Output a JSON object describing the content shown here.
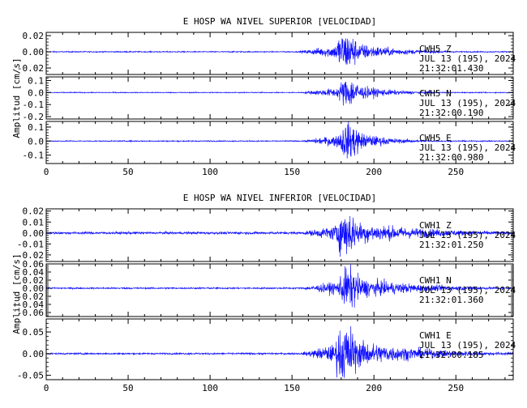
{
  "colors": {
    "trace": "#1010ff",
    "axis": "#000000",
    "background": "#ffffff"
  },
  "chart_data": [
    {
      "type": "line",
      "title": "E HOSP WA NIVEL SUPERIOR [VELOCIDAD]",
      "ylabel": "Amplitud [cm/s]",
      "xlim": [
        0,
        285
      ],
      "x_ticks": [
        0,
        50,
        100,
        150,
        200,
        250
      ],
      "panels": [
        {
          "station": "CWH5",
          "channel": "Z",
          "date": "JUL 13 (195), 2024",
          "time": "21:32:01.430",
          "ylim": [
            -0.028,
            0.024
          ],
          "y_ticks": [
            0.02,
            0.0,
            -0.02
          ],
          "y_tick_labels": [
            "0.02",
            "0.00",
            "-0.02"
          ],
          "noise": 0.0007,
          "peak": 0.026,
          "event_start": 152,
          "event_peak": 183,
          "event_end": 235
        },
        {
          "station": "CWH5",
          "channel": "N",
          "date": "JUL 13 (195), 2024",
          "time": "21:32:00.190",
          "ylim": [
            -0.22,
            0.13
          ],
          "y_ticks": [
            0.1,
            0.0,
            -0.1,
            -0.2
          ],
          "y_tick_labels": [
            "0.1",
            "0.0",
            "-0.1",
            "-0.2"
          ],
          "noise": 0.004,
          "peak": 0.13,
          "event_start": 153,
          "event_peak": 185,
          "event_end": 230
        },
        {
          "station": "CWH5",
          "channel": "E",
          "date": "JUL 13 (195), 2024",
          "time": "21:32:00.980",
          "ylim": [
            -0.16,
            0.14
          ],
          "y_ticks": [
            0.1,
            0.0,
            -0.1
          ],
          "y_tick_labels": [
            "0.1",
            "0.0",
            "-0.1"
          ],
          "noise": 0.004,
          "peak": 0.14,
          "event_start": 155,
          "event_peak": 185,
          "event_end": 225
        }
      ]
    },
    {
      "type": "line",
      "title": "E HOSP WA NIVEL INFERIOR [VELOCIDAD]",
      "ylabel": "Amplitud [cm/s]",
      "xlim": [
        0,
        285
      ],
      "x_ticks": [
        0,
        50,
        100,
        150,
        200,
        250
      ],
      "panels": [
        {
          "station": "CWH1",
          "channel": "Z",
          "date": "JUL 13 (195), 2024",
          "time": "21:32:01.250",
          "ylim": [
            -0.026,
            0.022
          ],
          "y_ticks": [
            0.02,
            0.01,
            0.0,
            -0.01,
            -0.02
          ],
          "y_tick_labels": [
            "0.02",
            "0.01",
            "0.00",
            "-0.01",
            "-0.02"
          ],
          "noise": 0.0012,
          "peak": 0.022,
          "event_start": 153,
          "event_peak": 183,
          "event_end": 285
        },
        {
          "station": "CWH1",
          "channel": "N",
          "date": "JUL 13 (195), 2024",
          "time": "21:32:01.360",
          "ylim": [
            -0.07,
            0.06
          ],
          "y_ticks": [
            0.06,
            0.04,
            0.02,
            0.0,
            -0.02,
            -0.04,
            -0.06
          ],
          "y_tick_labels": [
            "0.06",
            "0.04",
            "0.02",
            "0.00",
            "-0.02",
            "-0.04",
            "-0.06"
          ],
          "noise": 0.002,
          "peak": 0.055,
          "event_start": 153,
          "event_peak": 185,
          "event_end": 270
        },
        {
          "station": "CWH1",
          "channel": "E",
          "date": "JUL 13 (195), 2024",
          "time": "21:32:00.185",
          "ylim": [
            -0.06,
            0.08
          ],
          "y_ticks": [
            0.05,
            0.0,
            -0.05
          ],
          "y_tick_labels": [
            "0.05",
            "0.00",
            "-0.05"
          ],
          "noise": 0.002,
          "peak": 0.07,
          "event_start": 153,
          "event_peak": 183,
          "event_end": 270
        }
      ]
    }
  ]
}
